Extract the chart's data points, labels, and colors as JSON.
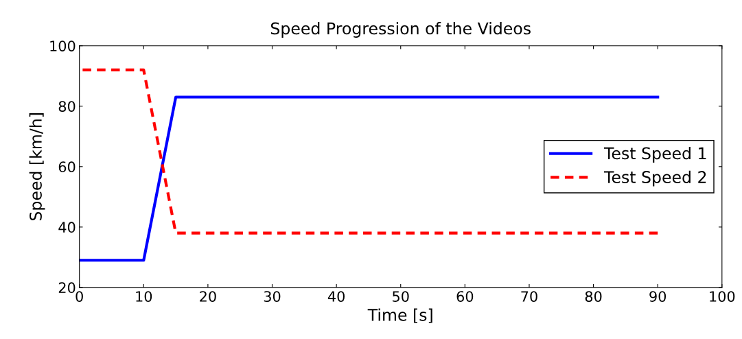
{
  "chart_data": {
    "type": "line",
    "title": "Speed Progression of the Videos",
    "xlabel": "Time [s]",
    "ylabel": "Speed [km/h]",
    "xlim": [
      0,
      100
    ],
    "ylim": [
      20,
      100
    ],
    "xticks": [
      0,
      10,
      20,
      30,
      40,
      50,
      60,
      70,
      80,
      90,
      100
    ],
    "yticks": [
      20,
      40,
      60,
      80,
      100
    ],
    "grid": false,
    "legend": "right",
    "series": [
      {
        "name": "Test Speed 1",
        "color": "#0000ff",
        "line_style": "solid",
        "x": [
          0,
          10,
          15,
          90
        ],
        "values": [
          29,
          29,
          83,
          83
        ]
      },
      {
        "name": "Test Speed 2",
        "color": "#ff0000",
        "line_style": "dashed",
        "x": [
          0,
          10,
          15,
          90
        ],
        "values": [
          92,
          92,
          38,
          38
        ]
      }
    ]
  }
}
